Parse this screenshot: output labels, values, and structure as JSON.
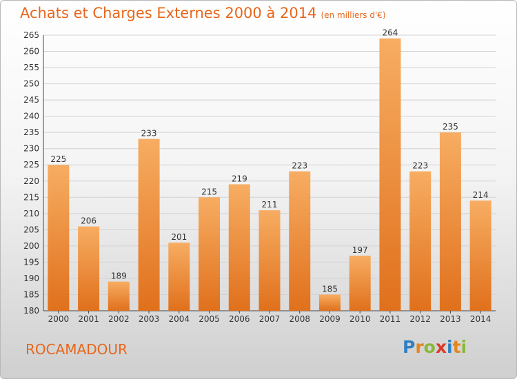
{
  "header": {
    "title": "Achats et Charges Externes 2000 à 2014",
    "subtitle": "(en milliers d'€)"
  },
  "footer": {
    "city": "ROCAMADOUR",
    "logo_letters": [
      "P",
      "r",
      "o",
      "x",
      "i",
      "t",
      "i"
    ],
    "logo_colors": [
      "#2e7fc2",
      "#e5861c",
      "#8ab73a",
      "#d93a2a",
      "#2e7fc2",
      "#e5861c",
      "#8ab73a"
    ]
  },
  "chart_data": {
    "type": "bar",
    "title": "Achats et Charges Externes 2000 à 2014",
    "subtitle": "(en milliers d'€)",
    "categories": [
      "2000",
      "2001",
      "2002",
      "2003",
      "2004",
      "2005",
      "2006",
      "2007",
      "2008",
      "2009",
      "2010",
      "2011",
      "2012",
      "2013",
      "2014"
    ],
    "values": [
      225,
      206,
      189,
      233,
      201,
      215,
      219,
      211,
      223,
      185,
      197,
      264,
      223,
      235,
      214
    ],
    "ylim": [
      180,
      265
    ],
    "yticks": [
      180,
      185,
      190,
      195,
      200,
      205,
      210,
      215,
      220,
      225,
      230,
      235,
      240,
      245,
      250,
      255,
      260,
      265
    ],
    "grid": true,
    "bar_color": "#f08a2a",
    "bar_color_light": "#f7ad62"
  }
}
